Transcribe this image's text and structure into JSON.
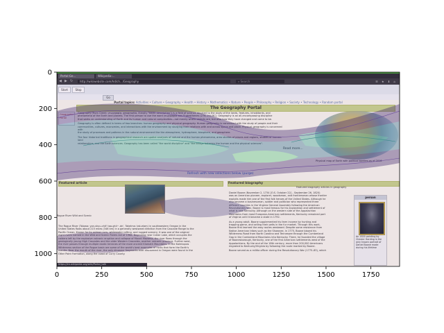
{
  "browser": {
    "tabs": [
      "Portal:Ge...",
      "Wikipedia:..."
    ],
    "url": "http://wikiwebsite.com/hd/ch.../Geography",
    "search_placeholder": "Search",
    "back_icon": "arrow-left",
    "forward_icon": "arrow-right",
    "reload_icon": "reload"
  },
  "page_tabs": [
    "Start",
    "Stop"
  ],
  "go_label": "Go",
  "portal": {
    "links_label": "Portal topics:",
    "links": "Activities • Culture • Geography • Health • History • Mathematics • Nature • People • Philosophy • Religion • Society • Technology • Random portal",
    "title": "The Geography Portal",
    "sidebox": [
      "Geographic",
      "Portal"
    ],
    "intro": [
      "Geography (from Greek: γεωγραφία, geographia, literally \"earth description\") is a field of science devoted to the study of the lands, features, inhabitants, and",
      "phenomena of the Earth and planets. The first person to use the word γεωγραφία was Eratosthenes (276–194 BC). Geography is an all-encompassing discipline",
      "that seeks an understanding of Earth and its human and natural complexities—not merely where objects are, but also how they have changed and come to be.",
      "Geography is often defined in terms of two branches: human geography and physical geography. Human geography is concerned with the study of people and their",
      "communities, cultures, economies, and interactions with the environment by studying their relations with and across space and place. Physical geography is concerned with",
      "the study of processes and patterns in the natural environment like the atmosphere, hydrosphere, biosphere, and geosphere.",
      "The four historical traditions in geographical research are spatial analyses of natural and the human phenomena, area studies of places and regions, studies of human-land",
      "relationships, and the Earth sciences. Geography has been called \"the world discipline\" and \"the bridge between the human and the physical sciences\"."
    ],
    "read_more": "Read more...",
    "globe_caption": "Physical map of Earth with political borders as of 2016",
    "refresh": "Refresh with new selections below (purge)"
  },
  "featured_article": {
    "heading": "Featured article",
    "image_caption": "Rogue River Wild and Scenic",
    "text": [
      "The Rogue River (Tolowa: yan-shuu-chit' taa-ghii~-dn', Takelma: tak-elam) in southwestern Oregon in the",
      "United States flows about 215 miles (346 km) in a generally westward direction from the Cascade Range to the",
      "Pacific Ocean. Known for its salmon runs, whitewater rafting, and rugged scenery, it was one of the original",
      "eight rivers named in the Wild and Scenic Rivers Act of 1968. Beginning near Crater Lake, which occupies the",
      "caldera left by the explosive volcanic eruption and collapse of Mount Mazama, the river flows through the",
      "geologically young High Cascades and the older Western Cascades, another volcanic province. Further west,",
      "the river passes through multiple exotic terranes of the more ancient Klamath Mountains. In the Kalmiopsis",
      "Wilderness section of the Rogue basin are some of the world's best examples of rocks that form the Earth's",
      "mantle. Near the mouth of the river, the only dinosaur fragments ever discovered in Oregon were found in the",
      "Otter Point Formation, along the coast of Curry County."
    ]
  },
  "featured_biography": {
    "heading": "Featured biography",
    "subheading": "Featured biography articles in geography",
    "text": [
      "Daniel Boone (November 2, 1734 [O.S. October 22] – September 26, 1820)",
      "was an American pioneer, explorer, woodsman, and frontiersman whose frontier",
      "exploits made him one of the first folk heroes of the United States. Although he",
      "also became a businessman, soldier and politician who represented three",
      "different counties in the Virginia General Assembly following the American",
      "Revolutionary War, Boone is most famous for his exploration and settlement of",
      "what is now Kentucky. Although on the western side of the Appalachian",
      "Mountains from most European-American settlements, Kentucky remained part",
      "of Virginia until it became a state in 1792.",
      "As a young adult, Boone supplemented his farm income by hunting and",
      "trapping game, and selling their pelts in the fur market. Through this work,",
      "Boone first learned the easy routes westward. Despite some resistance from",
      "Native American tribes such as the Shawnee, in 1775, Boone blazed his",
      "Wilderness Road from North Carolina and Tennessee through the Cumberland",
      "Gap in the Cumberland Mountains into Kentucky. There, he founded the village",
      "of Boonesborough, Kentucky, one of the first American settlements west of the",
      "Appalachians. By the end of the 18th century, more than 200,000 Americans",
      "migrated to Kentucky/Virginia by following the route marked by Boone.",
      "Boone served as a militia officer during the Revolutionary War (1775–83), which"
    ],
    "infobox_title": "person",
    "infobox_caption": "An 1820 painting by Chester Harding is the only known portrait of Daniel Boone made during his lifetime"
  },
  "status_url": "https://en.wikipedia.org/wiki/Portal_talk",
  "chart_data": {
    "type": "heatmap",
    "title": "",
    "xlabel": "",
    "ylabel": "",
    "xlim": [
      0,
      1910
    ],
    "ylim": [
      1070,
      0
    ],
    "xticks": [
      0,
      250,
      500,
      750,
      1000,
      1250,
      1500,
      1750
    ],
    "yticks": [
      0,
      200,
      400,
      600,
      800,
      1000
    ],
    "grid": false,
    "overlay": "semi-transparent contour density overlay on screenshot",
    "colors": {
      "axis": "#000000",
      "overlay_dark": "#3b1c6b",
      "overlay_mid": "#2f8f8a",
      "overlay_light": "#7fd07a"
    }
  }
}
